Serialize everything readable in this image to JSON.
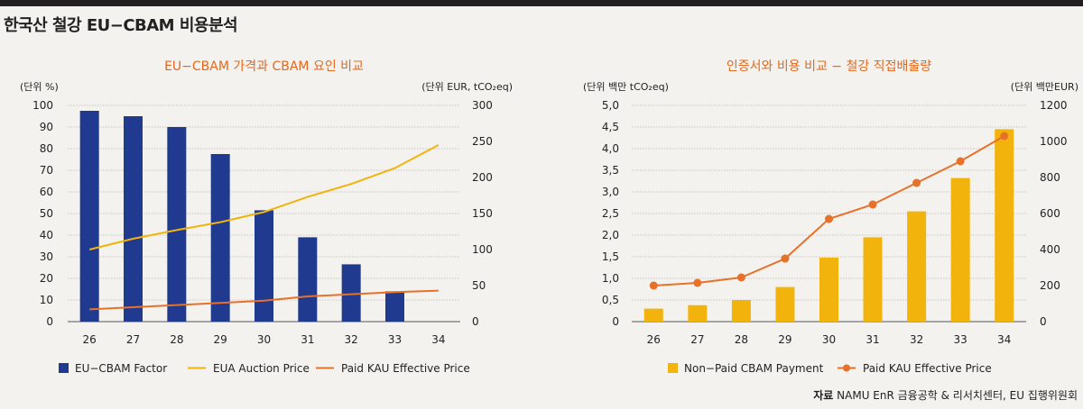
{
  "page": {
    "title": "한국산 철강 EU−CBAM 비용분석",
    "source_label": "자료",
    "source_text": "NAMU EnR 금융공학 & 리서치센터, EU 집행위원회"
  },
  "chart_data": [
    {
      "type": "bar",
      "title": "EU−CBAM 가격과 CBAM 요인 비교",
      "y_left_unit": "(단위 %)",
      "y_right_unit": "(단위 EUR, tCO₂eq)",
      "categories": [
        "26",
        "27",
        "28",
        "29",
        "30",
        "31",
        "32",
        "33",
        "34"
      ],
      "y_left_ticks": [
        "100",
        "90",
        "80",
        "70",
        "60",
        "50",
        "40",
        "30",
        "20",
        "10",
        "0"
      ],
      "y_right_ticks": [
        "300",
        "250",
        "200",
        "150",
        "100",
        "50",
        "0"
      ],
      "ylim_left": [
        0,
        100
      ],
      "ylim_right": [
        0,
        300
      ],
      "grid": true,
      "legend_position": "bottom",
      "series": [
        {
          "name": "EU−CBAM Factor",
          "kind": "bar",
          "axis": "left",
          "color": "#1f3a8f",
          "values": [
            97.5,
            95,
            90,
            77.5,
            51.5,
            39,
            26.5,
            14,
            null
          ]
        },
        {
          "name": "EUA Auction Price",
          "kind": "line",
          "axis": "right",
          "color": "#f2b30c",
          "values": [
            100,
            115,
            127,
            138,
            152,
            173,
            191,
            213,
            245
          ]
        },
        {
          "name": "Paid KAU Effective Price",
          "kind": "line",
          "axis": "right",
          "color": "#e8712a",
          "values": [
            17,
            20,
            23,
            26,
            29,
            35,
            38,
            41,
            43
          ]
        }
      ]
    },
    {
      "type": "bar",
      "title": "인증서와 비용 비교 − 철강 직접배출량",
      "y_left_unit": "(단위 백만 tCO₂eq)",
      "y_right_unit": "(단위 백만EUR)",
      "categories": [
        "26",
        "27",
        "28",
        "29",
        "30",
        "31",
        "32",
        "33",
        "34"
      ],
      "y_left_ticks": [
        "5,0",
        "4,5",
        "4,0",
        "3,5",
        "3,0",
        "2,5",
        "2,0",
        "1,5",
        "1,0",
        "0,5",
        "0"
      ],
      "y_right_ticks": [
        "1200",
        "1000",
        "800",
        "600",
        "400",
        "200",
        "0"
      ],
      "ylim_left": [
        0,
        5
      ],
      "ylim_right": [
        0,
        1200
      ],
      "grid": true,
      "legend_position": "bottom",
      "series": [
        {
          "name": "Non−Paid CBAM Payment",
          "kind": "bar",
          "axis": "left",
          "color": "#f2b30c",
          "values": [
            0.3,
            0.38,
            0.5,
            0.8,
            1.48,
            1.95,
            2.55,
            3.32,
            4.45
          ]
        },
        {
          "name": "Paid KAU Effective Price",
          "kind": "line-marker",
          "axis": "right",
          "color": "#e8712a",
          "values": [
            200,
            215,
            245,
            350,
            570,
            650,
            770,
            890,
            1030
          ]
        }
      ]
    }
  ]
}
